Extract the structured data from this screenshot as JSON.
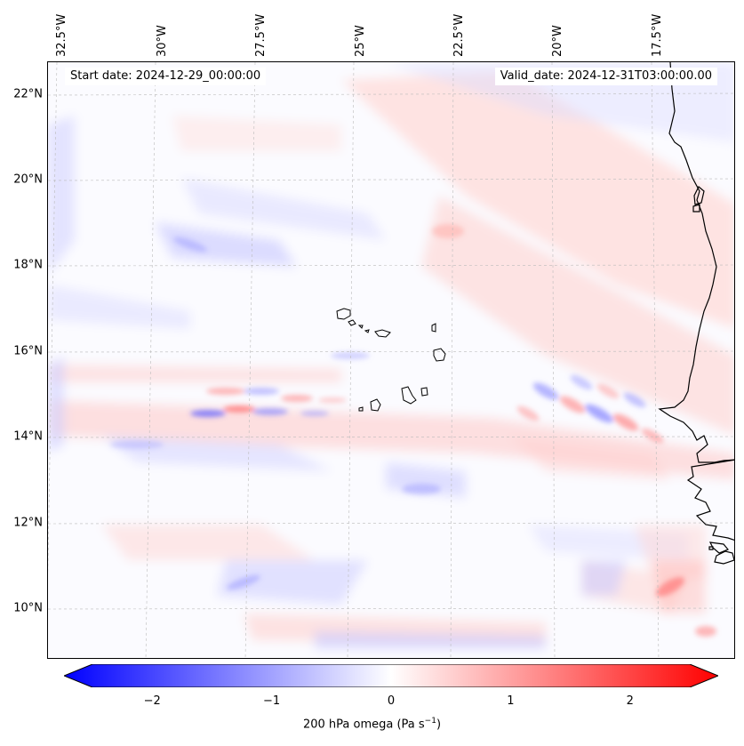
{
  "map": {
    "start_label": "Start date: 2024-12-29_00:00:00",
    "valid_label": "Valid_date: 2024-12-31T03:00:00.00",
    "lon_ticks": [
      "32.5°W",
      "30°W",
      "27.5°W",
      "25°W",
      "22.5°W",
      "20°W",
      "17.5°W"
    ],
    "lat_ticks": [
      "22°N",
      "20°N",
      "18°N",
      "16°N",
      "14°N",
      "12°N",
      "10°N"
    ],
    "variable": "200 hPa omega"
  },
  "colorbar": {
    "min": -2.5,
    "max": 2.5,
    "ticks": [
      "−2",
      "−1",
      "0",
      "1",
      "2"
    ],
    "tick_values": [
      -2,
      -1,
      0,
      1,
      2
    ],
    "title": "200 hPa omega (Pa s",
    "title_sup": "−1",
    "title_end": ")",
    "low_color": "#0000ff",
    "mid_color": "#ffffff",
    "high_color": "#ff0000"
  },
  "colors": {
    "coastline": "#000000",
    "gridline": "#bbbbbb"
  }
}
